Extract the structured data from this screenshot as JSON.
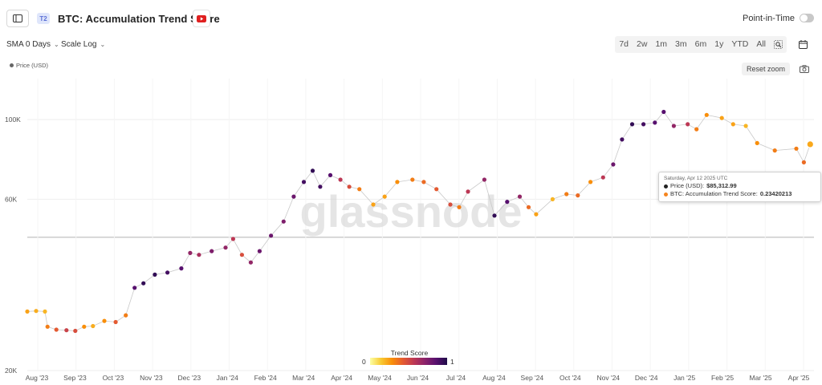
{
  "header": {
    "tier_badge": "T2",
    "title": "BTC: Accumulation Trend Score",
    "point_in_time_label": "Point-in-Time"
  },
  "controls": {
    "sma_label": "SMA 0 Days",
    "scale_label": "Scale Log",
    "ranges": [
      "7d",
      "2w",
      "1m",
      "3m",
      "6m",
      "1y",
      "YTD",
      "All"
    ],
    "reset_zoom": "Reset zoom"
  },
  "legend": {
    "price": "Price (USD)"
  },
  "tooltip": {
    "date": "Saturday, Apr 12 2025 UTC",
    "price_label": "Price (USD):",
    "price_value": "$85,312.99",
    "score_label": "BTC: Accumulation Trend Score:",
    "score_value": "0.23420213",
    "price_color": "#222222",
    "score_color": "#f5851f"
  },
  "colorbar": {
    "title": "Trend Score",
    "min_label": "0",
    "max_label": "1"
  },
  "watermark": "glassnode",
  "chart_data": {
    "type": "scatter",
    "title": "BTC: Accumulation Trend Score",
    "y_scale": "log",
    "ylim": [
      20000,
      130000
    ],
    "x_range": [
      "2023-08-01",
      "2025-04-15"
    ],
    "x_ticks": [
      "Aug '23",
      "Sep '23",
      "Oct '23",
      "Nov '23",
      "Dec '23",
      "Jan '24",
      "Feb '24",
      "Mar '24",
      "Apr '24",
      "May '24",
      "Jun '24",
      "Jul '24",
      "Aug '24",
      "Sep '24",
      "Oct '24",
      "Nov '24",
      "Dec '24",
      "Jan '25",
      "Feb '25",
      "Mar '25",
      "Apr '25"
    ],
    "y_ticks": [
      {
        "value": 20000,
        "label": "20K"
      },
      {
        "value": 60000,
        "label": "60K"
      },
      {
        "value": 100000,
        "label": "100K"
      }
    ],
    "reference_line": 47000,
    "colormap": "inferno_r",
    "series": [
      {
        "name": "Price (USD)",
        "color_by": "BTC: Accumulation Trend Score",
        "points": [
          [
            "2023-08-01",
            29200,
            0.25
          ],
          [
            "2023-08-08",
            29300,
            0.22
          ],
          [
            "2023-08-15",
            29200,
            0.2
          ],
          [
            "2023-08-17",
            26500,
            0.35
          ],
          [
            "2023-08-24",
            26000,
            0.45
          ],
          [
            "2023-09-01",
            25900,
            0.55
          ],
          [
            "2023-09-08",
            25800,
            0.5
          ],
          [
            "2023-09-15",
            26500,
            0.3
          ],
          [
            "2023-09-22",
            26600,
            0.22
          ],
          [
            "2023-10-01",
            27500,
            0.3
          ],
          [
            "2023-10-10",
            27300,
            0.45
          ],
          [
            "2023-10-18",
            28500,
            0.35
          ],
          [
            "2023-10-25",
            34000,
            0.85
          ],
          [
            "2023-11-01",
            35000,
            0.95
          ],
          [
            "2023-11-10",
            37000,
            0.95
          ],
          [
            "2023-11-20",
            37500,
            0.9
          ],
          [
            "2023-12-01",
            38500,
            0.85
          ],
          [
            "2023-12-08",
            42500,
            0.7
          ],
          [
            "2023-12-15",
            42000,
            0.65
          ],
          [
            "2023-12-25",
            43000,
            0.75
          ],
          [
            "2024-01-05",
            44000,
            0.7
          ],
          [
            "2024-01-11",
            46500,
            0.6
          ],
          [
            "2024-01-18",
            42000,
            0.5
          ],
          [
            "2024-01-25",
            40000,
            0.7
          ],
          [
            "2024-02-01",
            43000,
            0.8
          ],
          [
            "2024-02-10",
            47500,
            0.8
          ],
          [
            "2024-02-20",
            52000,
            0.75
          ],
          [
            "2024-02-28",
            61000,
            0.8
          ],
          [
            "2024-03-07",
            67000,
            0.9
          ],
          [
            "2024-03-14",
            72000,
            0.95
          ],
          [
            "2024-03-20",
            65000,
            0.9
          ],
          [
            "2024-03-28",
            70000,
            0.85
          ],
          [
            "2024-04-05",
            68000,
            0.6
          ],
          [
            "2024-04-12",
            65000,
            0.5
          ],
          [
            "2024-04-20",
            64000,
            0.35
          ],
          [
            "2024-05-01",
            58000,
            0.25
          ],
          [
            "2024-05-10",
            61000,
            0.25
          ],
          [
            "2024-05-20",
            67000,
            0.3
          ],
          [
            "2024-06-01",
            68000,
            0.35
          ],
          [
            "2024-06-10",
            67000,
            0.4
          ],
          [
            "2024-06-20",
            64000,
            0.45
          ],
          [
            "2024-07-01",
            58000,
            0.5
          ],
          [
            "2024-07-08",
            57000,
            0.35
          ],
          [
            "2024-07-15",
            63000,
            0.6
          ],
          [
            "2024-07-28",
            68000,
            0.7
          ],
          [
            "2024-08-05",
            54000,
            0.95
          ],
          [
            "2024-08-15",
            59000,
            0.85
          ],
          [
            "2024-08-25",
            61000,
            0.7
          ],
          [
            "2024-09-01",
            57000,
            0.4
          ],
          [
            "2024-09-07",
            54500,
            0.25
          ],
          [
            "2024-09-20",
            60000,
            0.2
          ],
          [
            "2024-10-01",
            62000,
            0.35
          ],
          [
            "2024-10-10",
            61500,
            0.4
          ],
          [
            "2024-10-20",
            67000,
            0.3
          ],
          [
            "2024-10-30",
            69000,
            0.6
          ],
          [
            "2024-11-07",
            75000,
            0.8
          ],
          [
            "2024-11-14",
            88000,
            0.9
          ],
          [
            "2024-11-22",
            97000,
            0.95
          ],
          [
            "2024-12-01",
            97000,
            0.9
          ],
          [
            "2024-12-10",
            98000,
            0.85
          ],
          [
            "2024-12-17",
            105000,
            0.85
          ],
          [
            "2024-12-25",
            96000,
            0.7
          ],
          [
            "2025-01-05",
            97000,
            0.6
          ],
          [
            "2025-01-12",
            94000,
            0.35
          ],
          [
            "2025-01-20",
            103000,
            0.3
          ],
          [
            "2025-02-01",
            101000,
            0.25
          ],
          [
            "2025-02-10",
            97000,
            0.25
          ],
          [
            "2025-02-20",
            96000,
            0.2
          ],
          [
            "2025-03-01",
            86000,
            0.3
          ],
          [
            "2025-03-15",
            82000,
            0.35
          ],
          [
            "2025-04-01",
            83000,
            0.35
          ],
          [
            "2025-04-07",
            76000,
            0.4
          ],
          [
            "2025-04-12",
            85313,
            0.23420213
          ]
        ]
      }
    ]
  }
}
